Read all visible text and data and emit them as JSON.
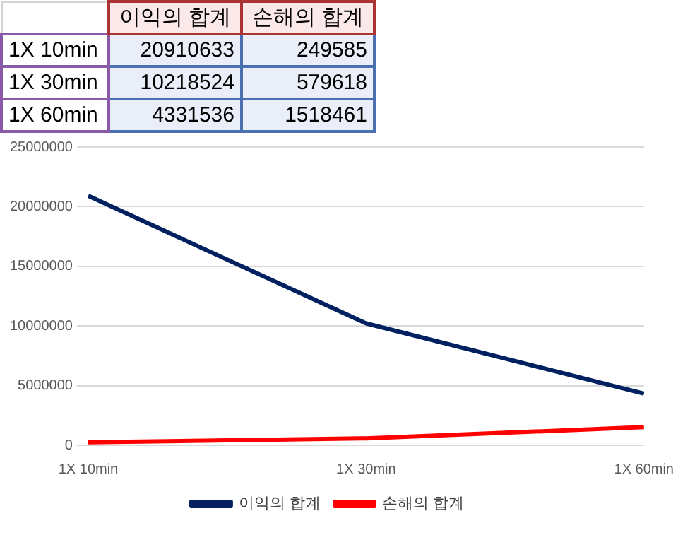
{
  "chart_data": [
    {
      "type": "heatmap",
      "categories": [
        "이익의 합계",
        "손해의 합계"
      ],
      "y_categories": [
        "1X 10min",
        "1X 30min",
        "1X 60min"
      ],
      "cells": [
        [
          20910633,
          249585
        ],
        [
          10218524,
          579618
        ],
        [
          4331536,
          1518461
        ]
      ],
      "data_labels": true
    },
    {
      "type": "line",
      "categories": [
        "1X 10min",
        "1X 30min",
        "1X 60min"
      ],
      "series": [
        {
          "name": "이익의 합계",
          "color": "#002060",
          "values": [
            20910633,
            10218524,
            4331536
          ]
        },
        {
          "name": "손해의 합계",
          "color": "#ff0000",
          "values": [
            249585,
            579618,
            1518461
          ]
        }
      ],
      "ylim": [
        0,
        25000000
      ],
      "yticks": [
        0,
        5000000,
        10000000,
        15000000,
        20000000,
        25000000
      ],
      "grid": "y",
      "legend": "bottom",
      "marker": "none",
      "line_style": "solid"
    }
  ]
}
